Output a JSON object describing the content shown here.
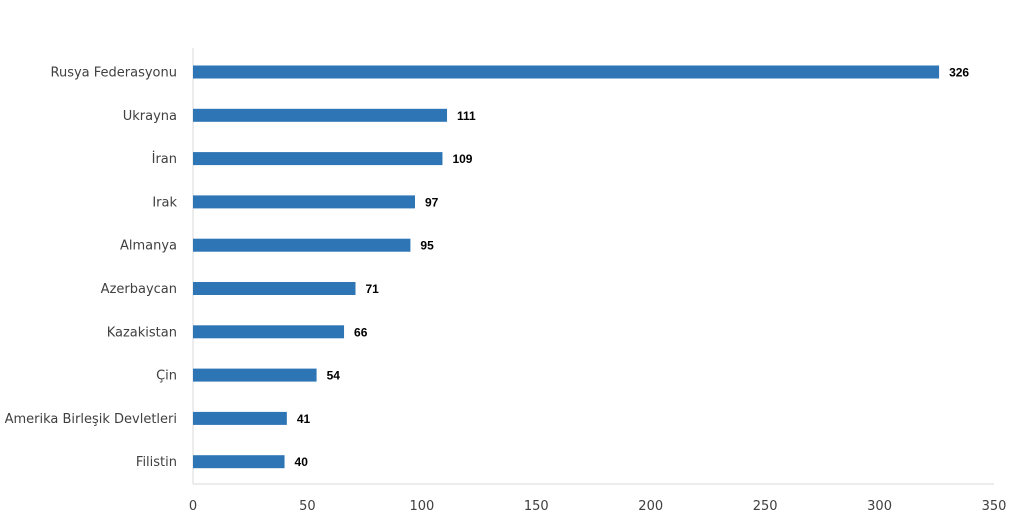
{
  "chart_data": {
    "type": "bar",
    "orientation": "horizontal",
    "categories": [
      "Rusya Federasyonu",
      "Ukrayna",
      "İran",
      "Irak",
      "Almanya",
      "Azerbaycan",
      "Kazakistan",
      "Çin",
      "Amerika Birleşik Devletleri",
      "Filistin"
    ],
    "values": [
      326,
      111,
      109,
      97,
      95,
      71,
      66,
      54,
      41,
      40
    ],
    "data_labels": [
      "326",
      "111",
      "109",
      "97",
      "95",
      "71",
      "66",
      "54",
      "41",
      "40"
    ],
    "xlim": [
      0,
      350
    ],
    "x_ticks": [
      0,
      50,
      100,
      150,
      200,
      250,
      300,
      350
    ],
    "x_tick_labels": [
      "0",
      "50",
      "100",
      "150",
      "200",
      "250",
      "300",
      "350"
    ],
    "title": "",
    "xlabel": "",
    "ylabel": "",
    "grid": false,
    "legend": "none",
    "bar_color": "#2e75b6",
    "axis_color": "#d9d9d9"
  }
}
